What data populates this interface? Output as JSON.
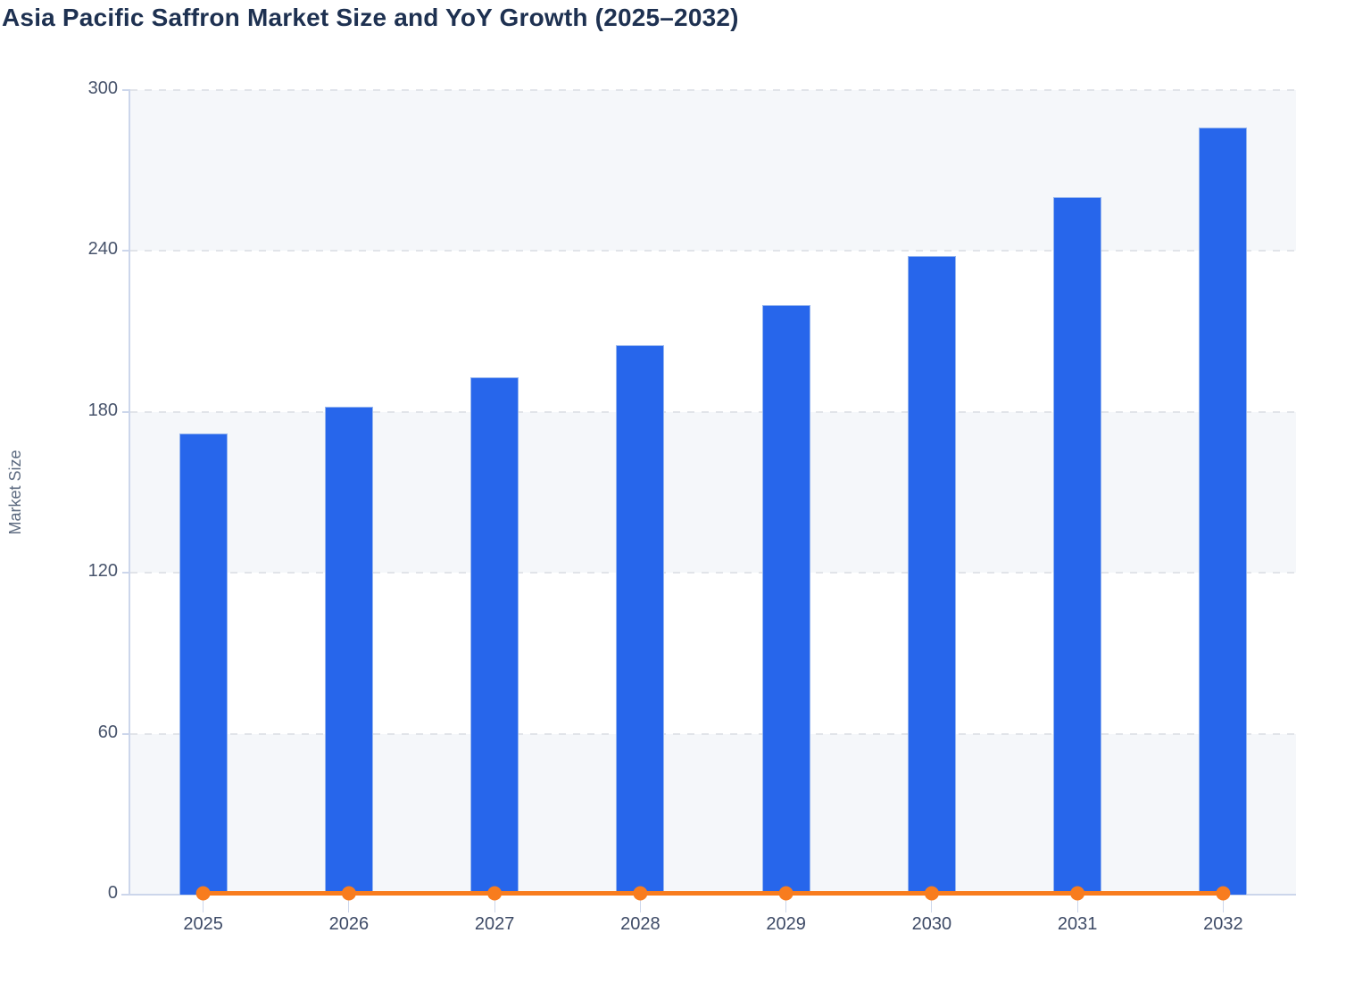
{
  "chart_data": {
    "type": "bar",
    "title": "Asia Pacific Saffron Market Size and YoY Growth (2025–2032)",
    "ylabel": "Market Size",
    "xlabel": "",
    "ylim": [
      0,
      300
    ],
    "yticks": [
      0,
      60,
      120,
      180,
      240,
      300
    ],
    "categories": [
      "2025",
      "2026",
      "2027",
      "2028",
      "2029",
      "2030",
      "2031",
      "2032"
    ],
    "series": [
      {
        "name": "Market Size",
        "type": "column",
        "color": "#2766eb",
        "values": [
          172,
          182,
          193,
          205,
          220,
          238,
          260,
          286
        ]
      },
      {
        "name": "YoY Growth",
        "type": "line",
        "color": "#f87c1e",
        "values": [
          0.5,
          0.5,
          0.5,
          0.5,
          0.5,
          0.5,
          0.5,
          0.5
        ]
      }
    ],
    "legend": "none",
    "grid": "dashed-horizontal",
    "alternating_band_fill": "#f5f7fa"
  },
  "colors": {
    "title": "#1e3151",
    "axis_line": "#ccd6eb",
    "y_tick_label": "#47536b",
    "x_tick_label": "#3d4a66",
    "axis_title": "#5c6a80",
    "gridline": "#e1e4e9",
    "band": "#f5f7fa",
    "bar": "#2766eb",
    "bar_border": "rgba(172,196,240,0.85)",
    "line": "#f87c1e"
  }
}
